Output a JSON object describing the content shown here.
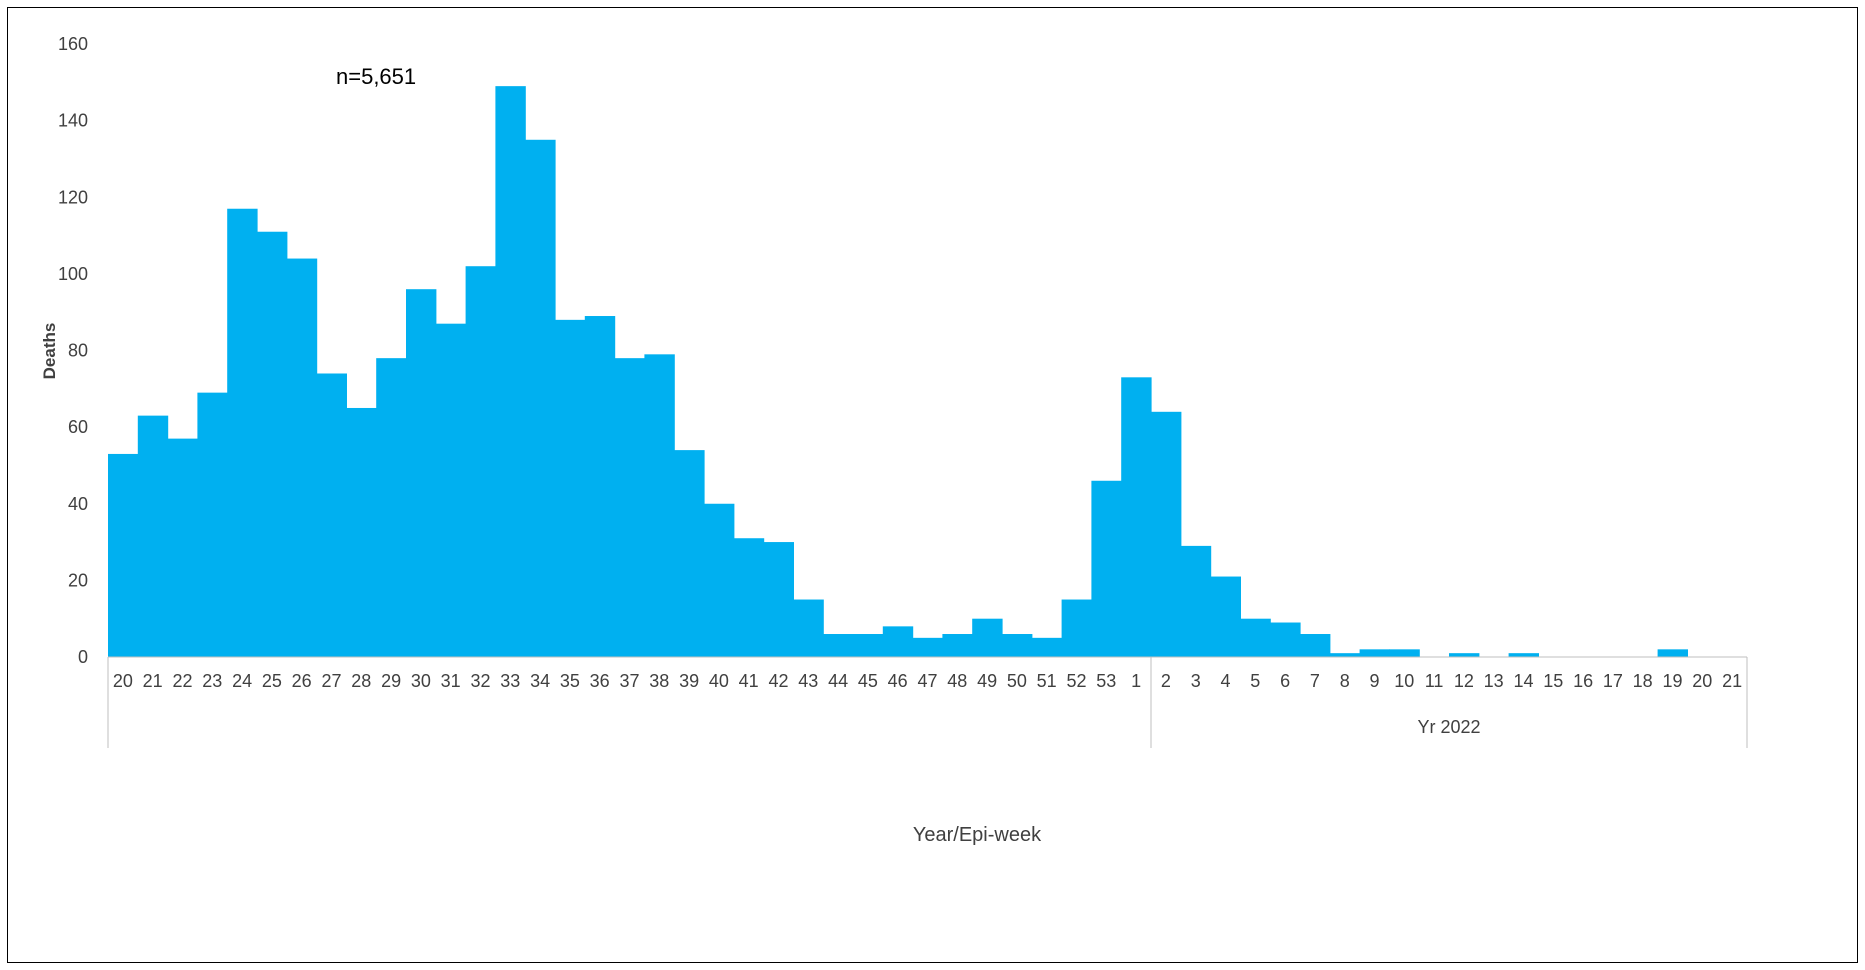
{
  "chart_data": {
    "type": "bar",
    "annotation": "n=5,651",
    "xlabel": "Year/Epi-week",
    "ylabel": "Deaths",
    "ylim": [
      0,
      160
    ],
    "yticks": [
      0,
      20,
      40,
      60,
      80,
      100,
      120,
      140,
      160
    ],
    "grid": false,
    "bar_color": "#00B0F0",
    "groups": [
      {
        "label": "",
        "count": 35
      },
      {
        "label": "Yr 2022",
        "count": 20
      }
    ],
    "categories": [
      "20",
      "21",
      "22",
      "23",
      "24",
      "25",
      "26",
      "27",
      "28",
      "29",
      "30",
      "31",
      "32",
      "33",
      "34",
      "35",
      "36",
      "37",
      "38",
      "39",
      "40",
      "41",
      "42",
      "43",
      "44",
      "45",
      "46",
      "47",
      "48",
      "49",
      "50",
      "51",
      "52",
      "53",
      "1",
      "2",
      "3",
      "4",
      "5",
      "6",
      "7",
      "8",
      "9",
      "10",
      "11",
      "12",
      "13",
      "14",
      "15",
      "16",
      "17",
      "18",
      "19",
      "20",
      "21"
    ],
    "values": [
      53,
      63,
      57,
      69,
      117,
      111,
      104,
      74,
      65,
      78,
      96,
      87,
      102,
      149,
      135,
      88,
      89,
      78,
      79,
      54,
      40,
      31,
      30,
      15,
      6,
      6,
      8,
      5,
      6,
      10,
      6,
      5,
      15,
      46,
      73,
      64,
      29,
      21,
      10,
      9,
      6,
      1,
      2,
      2,
      0,
      1,
      0,
      1,
      0,
      0,
      0,
      0,
      2,
      0,
      0
    ]
  }
}
